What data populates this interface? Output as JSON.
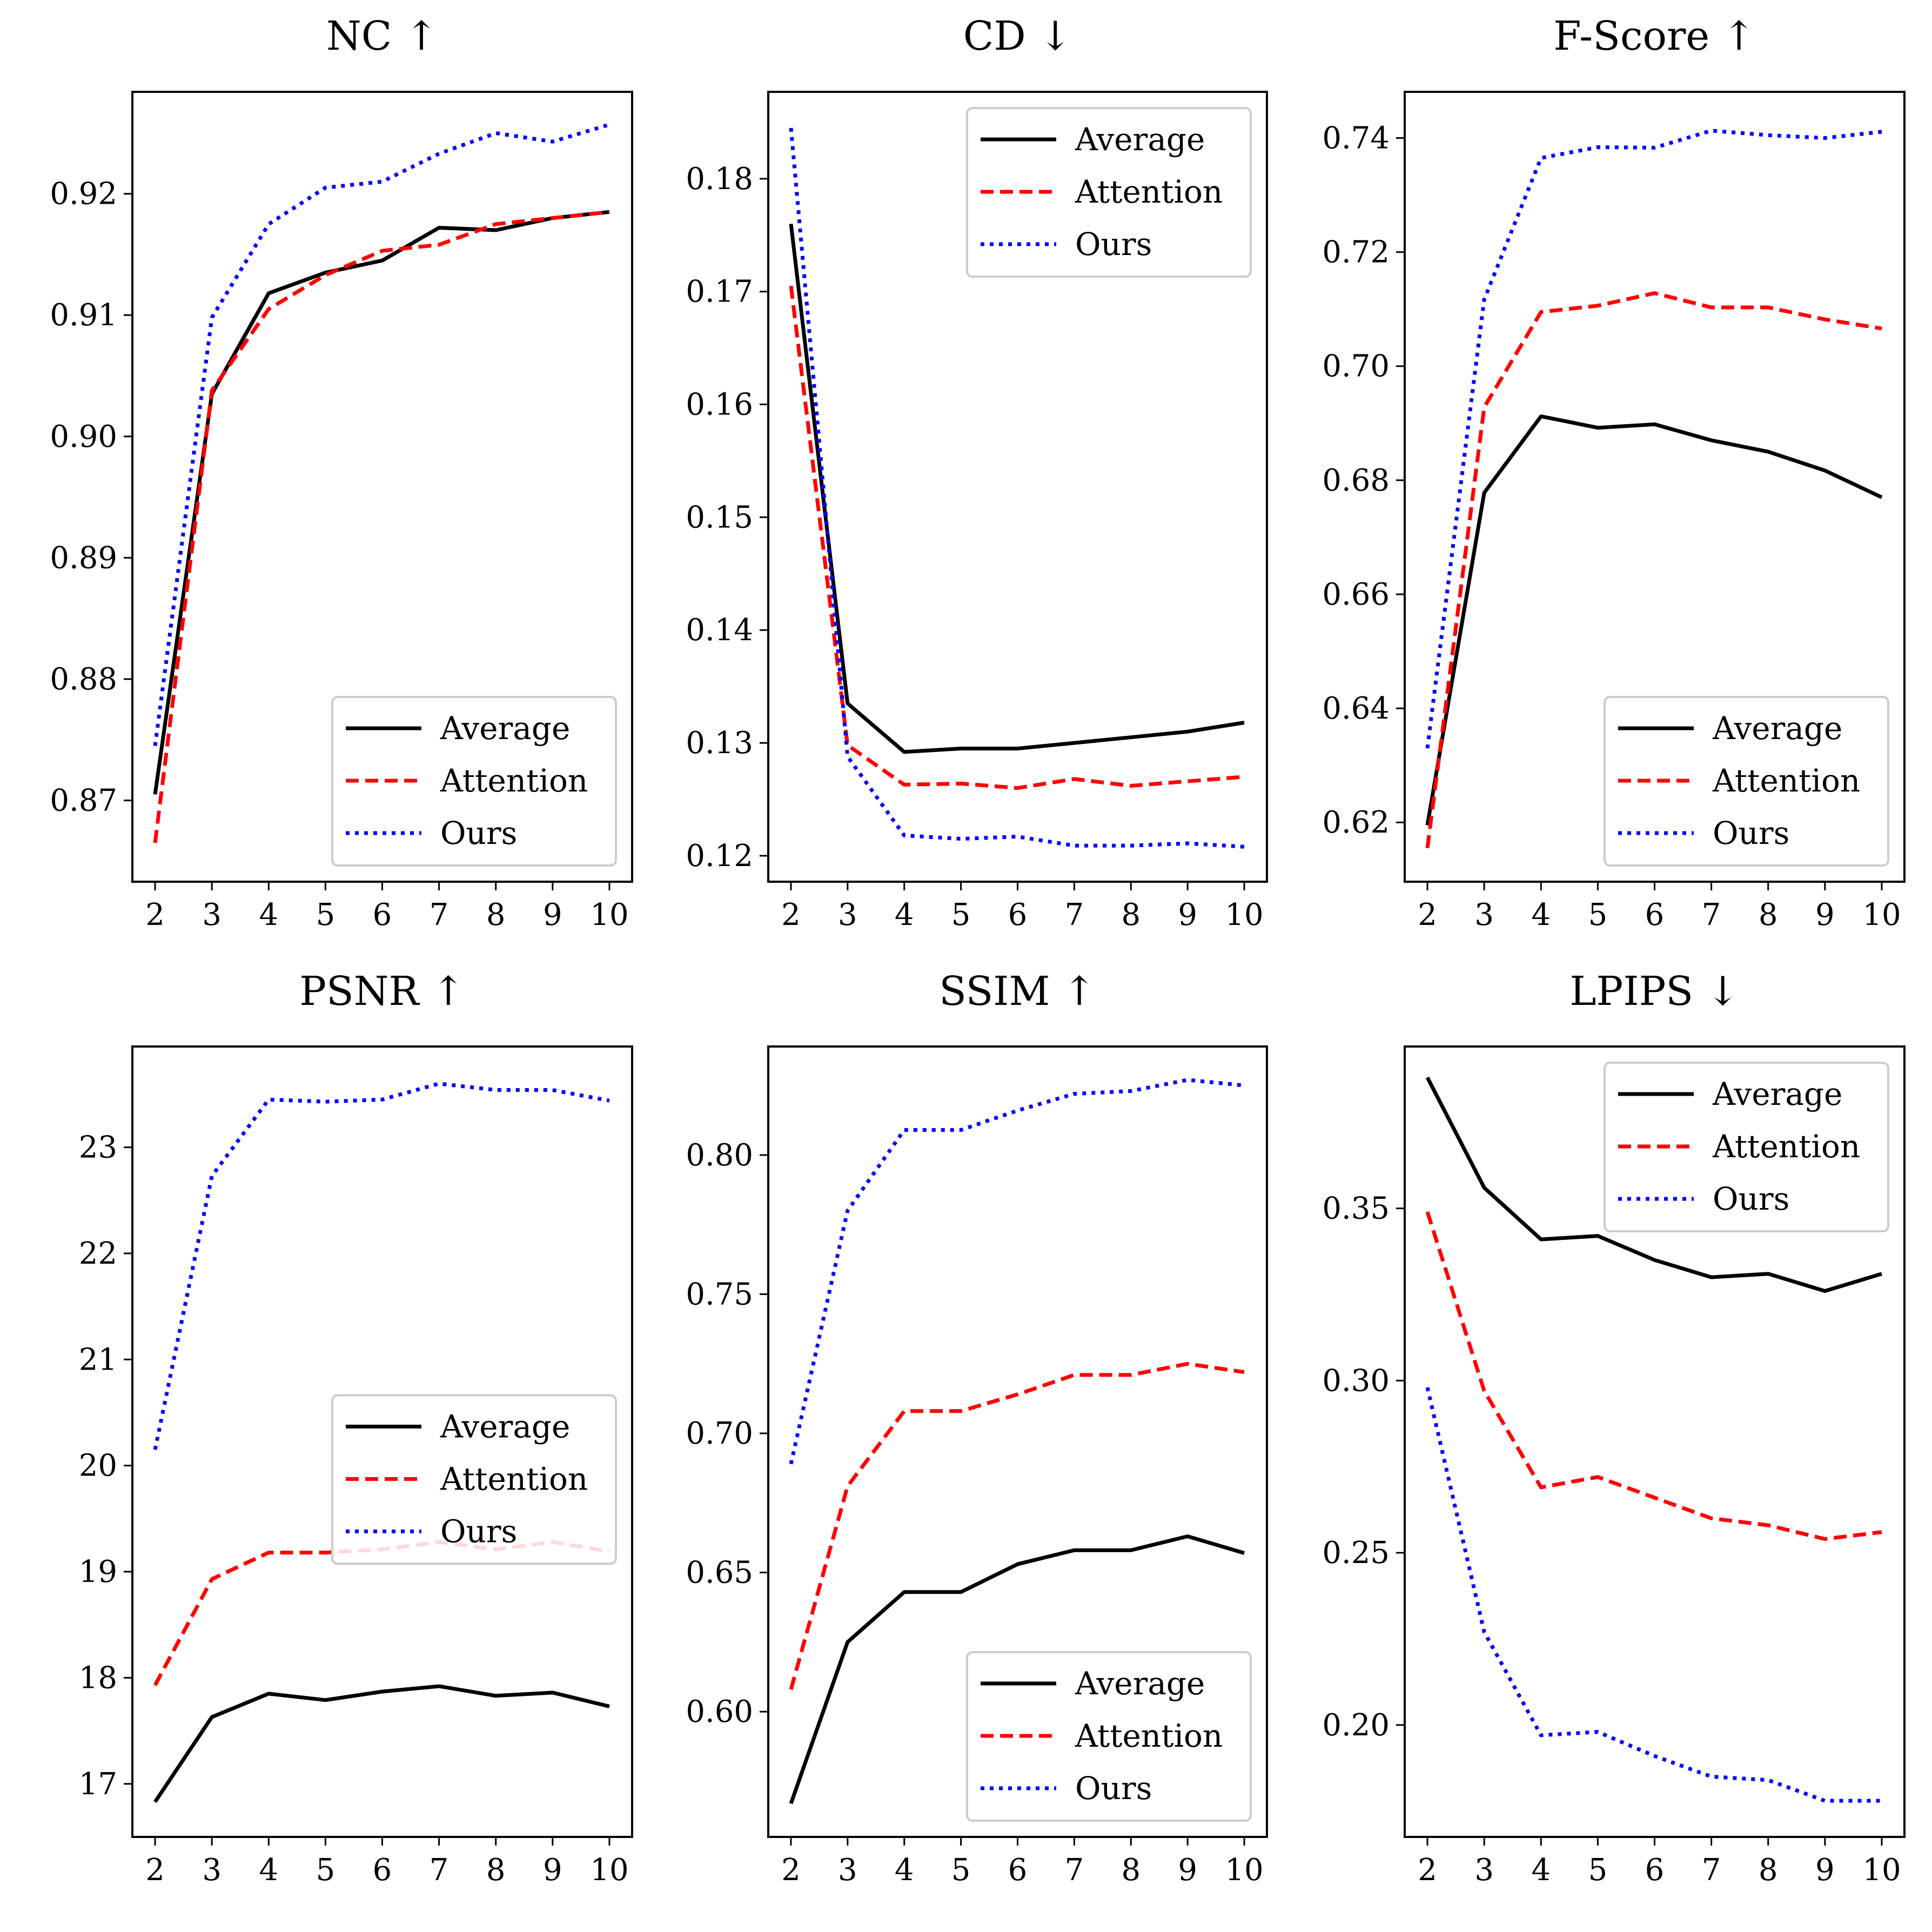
{
  "figure": {
    "legend_labels": [
      "Average",
      "Attention",
      "Ours"
    ],
    "series_colors": {
      "Average": "#000000",
      "Attention": "#ff0000",
      "Ours": "#0000ff"
    },
    "series_styles": {
      "Average": "solid",
      "Attention": "dashed",
      "Ours": "dotted"
    }
  },
  "chart_data": [
    {
      "type": "line",
      "title": "NC ↑",
      "x": [
        2,
        3,
        4,
        5,
        6,
        7,
        8,
        9,
        10
      ],
      "xticks": [
        "2",
        "3",
        "4",
        "5",
        "6",
        "7",
        "8",
        "9",
        "10"
      ],
      "xlim": [
        1.6,
        10.4
      ],
      "ylim": [
        0.8633,
        0.9284
      ],
      "yticks": [
        0.87,
        0.88,
        0.89,
        0.9,
        0.91,
        0.92
      ],
      "ytick_labels": [
        "0.87",
        "0.88",
        "0.89",
        "0.90",
        "0.91",
        "0.92"
      ],
      "legend_loc": "lower-right",
      "series": [
        {
          "name": "Average",
          "values": [
            0.8705,
            0.9035,
            0.9118,
            0.9135,
            0.9145,
            0.9172,
            0.917,
            0.918,
            0.9185
          ]
        },
        {
          "name": "Attention",
          "values": [
            0.8665,
            0.9038,
            0.9105,
            0.9133,
            0.9153,
            0.9158,
            0.9175,
            0.918,
            0.9185
          ]
        },
        {
          "name": "Ours",
          "values": [
            0.8745,
            0.9098,
            0.9175,
            0.9205,
            0.921,
            0.9233,
            0.925,
            0.9243,
            0.9257
          ]
        }
      ]
    },
    {
      "type": "line",
      "title": "CD ↓",
      "x": [
        2,
        3,
        4,
        5,
        6,
        7,
        8,
        9,
        10
      ],
      "xticks": [
        "2",
        "3",
        "4",
        "5",
        "6",
        "7",
        "8",
        "9",
        "10"
      ],
      "xlim": [
        1.6,
        10.4
      ],
      "ylim": [
        0.1177,
        0.1877
      ],
      "yticks": [
        0.12,
        0.13,
        0.14,
        0.15,
        0.16,
        0.17,
        0.18
      ],
      "ytick_labels": [
        "0.12",
        "0.13",
        "0.14",
        "0.15",
        "0.16",
        "0.17",
        "0.18"
      ],
      "legend_loc": "upper-right",
      "series": [
        {
          "name": "Average",
          "values": [
            0.176,
            0.1335,
            0.1292,
            0.1295,
            0.1295,
            0.13,
            0.1305,
            0.131,
            0.1318
          ]
        },
        {
          "name": "Attention",
          "values": [
            0.1705,
            0.1298,
            0.1263,
            0.1264,
            0.126,
            0.1268,
            0.1262,
            0.1266,
            0.127
          ]
        },
        {
          "name": "Ours",
          "values": [
            0.1845,
            0.1288,
            0.1218,
            0.1215,
            0.1217,
            0.1209,
            0.1209,
            0.1211,
            0.1208
          ]
        }
      ]
    },
    {
      "type": "line",
      "title": "F-Score ↑",
      "x": [
        2,
        3,
        4,
        5,
        6,
        7,
        8,
        9,
        10
      ],
      "xticks": [
        "2",
        "3",
        "4",
        "5",
        "6",
        "7",
        "8",
        "9",
        "10"
      ],
      "xlim": [
        1.6,
        10.4
      ],
      "ylim": [
        0.6096,
        0.7481
      ],
      "yticks": [
        0.62,
        0.64,
        0.66,
        0.68,
        0.7,
        0.72,
        0.74
      ],
      "ytick_labels": [
        "0.62",
        "0.64",
        "0.66",
        "0.68",
        "0.70",
        "0.72",
        "0.74"
      ],
      "legend_loc": "lower-right",
      "series": [
        {
          "name": "Average",
          "values": [
            0.6195,
            0.6778,
            0.6912,
            0.6892,
            0.6898,
            0.687,
            0.685,
            0.6817,
            0.677
          ]
        },
        {
          "name": "Attention",
          "values": [
            0.6155,
            0.6928,
            0.7095,
            0.7106,
            0.7128,
            0.7103,
            0.7103,
            0.7082,
            0.7066
          ]
        },
        {
          "name": "Ours",
          "values": [
            0.633,
            0.7117,
            0.7365,
            0.7384,
            0.7383,
            0.7413,
            0.7405,
            0.74,
            0.7411
          ]
        }
      ]
    },
    {
      "type": "line",
      "title": "PSNR ↑",
      "x": [
        2,
        3,
        4,
        5,
        6,
        7,
        8,
        9,
        10
      ],
      "xticks": [
        "2",
        "3",
        "4",
        "5",
        "6",
        "7",
        "8",
        "9",
        "10"
      ],
      "xlim": [
        1.6,
        10.4
      ],
      "ylim": [
        16.5,
        23.95
      ],
      "yticks": [
        17,
        18,
        19,
        20,
        21,
        22,
        23
      ],
      "ytick_labels": [
        "17",
        "18",
        "19",
        "20",
        "21",
        "22",
        "23"
      ],
      "legend_loc": "center-right",
      "series": [
        {
          "name": "Average",
          "values": [
            16.83,
            17.63,
            17.85,
            17.79,
            17.87,
            17.92,
            17.83,
            17.86,
            17.73
          ]
        },
        {
          "name": "Attention",
          "values": [
            17.93,
            18.93,
            19.18,
            19.18,
            19.21,
            19.28,
            19.21,
            19.28,
            19.19
          ]
        },
        {
          "name": "Ours",
          "values": [
            20.15,
            22.73,
            23.45,
            23.43,
            23.45,
            23.6,
            23.54,
            23.54,
            23.44
          ]
        }
      ]
    },
    {
      "type": "line",
      "title": "SSIM ↑",
      "x": [
        2,
        3,
        4,
        5,
        6,
        7,
        8,
        9,
        10
      ],
      "xticks": [
        "2",
        "3",
        "4",
        "5",
        "6",
        "7",
        "8",
        "9",
        "10"
      ],
      "xlim": [
        1.6,
        10.4
      ],
      "ylim": [
        0.555,
        0.839
      ],
      "yticks": [
        0.6,
        0.65,
        0.7,
        0.75,
        0.8
      ],
      "ytick_labels": [
        "0.60",
        "0.65",
        "0.70",
        "0.75",
        "0.80"
      ],
      "legend_loc": "lower-right",
      "series": [
        {
          "name": "Average",
          "values": [
            0.567,
            0.625,
            0.643,
            0.643,
            0.653,
            0.658,
            0.658,
            0.663,
            0.657
          ]
        },
        {
          "name": "Attention",
          "values": [
            0.608,
            0.681,
            0.708,
            0.708,
            0.714,
            0.721,
            0.721,
            0.725,
            0.722
          ]
        },
        {
          "name": "Ours",
          "values": [
            0.689,
            0.78,
            0.809,
            0.809,
            0.816,
            0.822,
            0.823,
            0.827,
            0.825
          ]
        }
      ]
    },
    {
      "type": "line",
      "title": "LPIPS ↓",
      "x": [
        2,
        3,
        4,
        5,
        6,
        7,
        8,
        9,
        10
      ],
      "xticks": [
        "2",
        "3",
        "4",
        "5",
        "6",
        "7",
        "8",
        "9",
        "10"
      ],
      "xlim": [
        1.6,
        10.4
      ],
      "ylim": [
        0.1675,
        0.397
      ],
      "yticks": [
        0.2,
        0.25,
        0.3,
        0.35
      ],
      "ytick_labels": [
        "0.20",
        "0.25",
        "0.30",
        "0.35"
      ],
      "legend_loc": "upper-right",
      "series": [
        {
          "name": "Average",
          "values": [
            0.388,
            0.356,
            0.341,
            0.342,
            0.335,
            0.33,
            0.331,
            0.326,
            0.331
          ]
        },
        {
          "name": "Attention",
          "values": [
            0.349,
            0.297,
            0.269,
            0.272,
            0.266,
            0.26,
            0.258,
            0.254,
            0.256
          ]
        },
        {
          "name": "Ours",
          "values": [
            0.298,
            0.227,
            0.197,
            0.198,
            0.191,
            0.185,
            0.184,
            0.178,
            0.178
          ]
        }
      ]
    }
  ]
}
